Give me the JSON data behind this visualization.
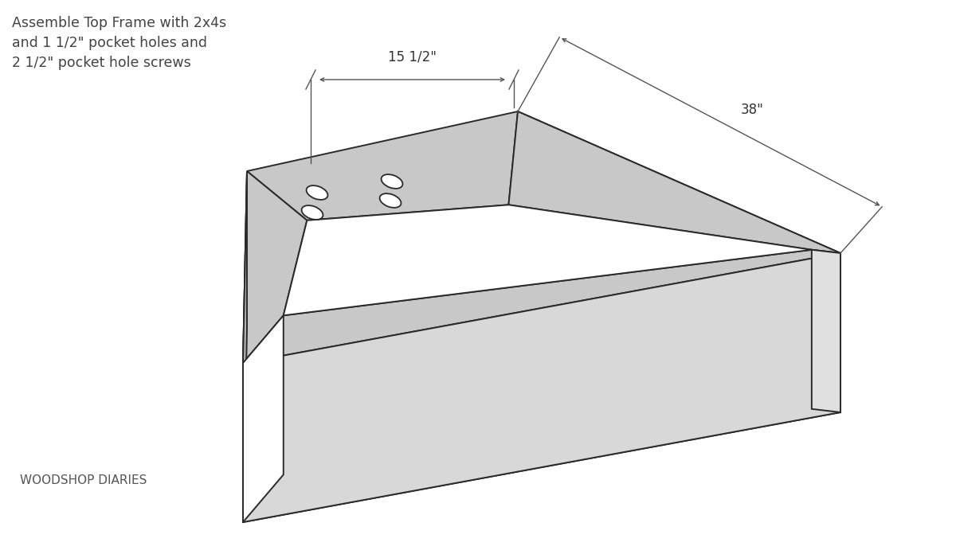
{
  "bg_color": "#ffffff",
  "line_color": "#2a2a2a",
  "face_top_board": "#c8c8c8",
  "face_left_wall": "#b5b5b5",
  "face_front_wall": "#d5d5d5",
  "face_right_wall": "#d0d0d0",
  "face_inner_top": "#f8f8f8",
  "face_inner_left_wall": "#e8e8e8",
  "face_inner_front_wall": "#f0f0f0",
  "face_bottom_wall": "#c0c0c0",
  "annotation_text": "Assemble Top Frame with 2x4s\nand 1 1/2\" pocket holes and\n2 1/2\" pocket hole screws",
  "dim_width": "15 1/2\"",
  "dim_length": "38\"",
  "brand_text": "WOODSHOP DIARIES",
  "title_fontsize": 12.5,
  "brand_fontsize": 11,
  "dim_fontsize": 12
}
